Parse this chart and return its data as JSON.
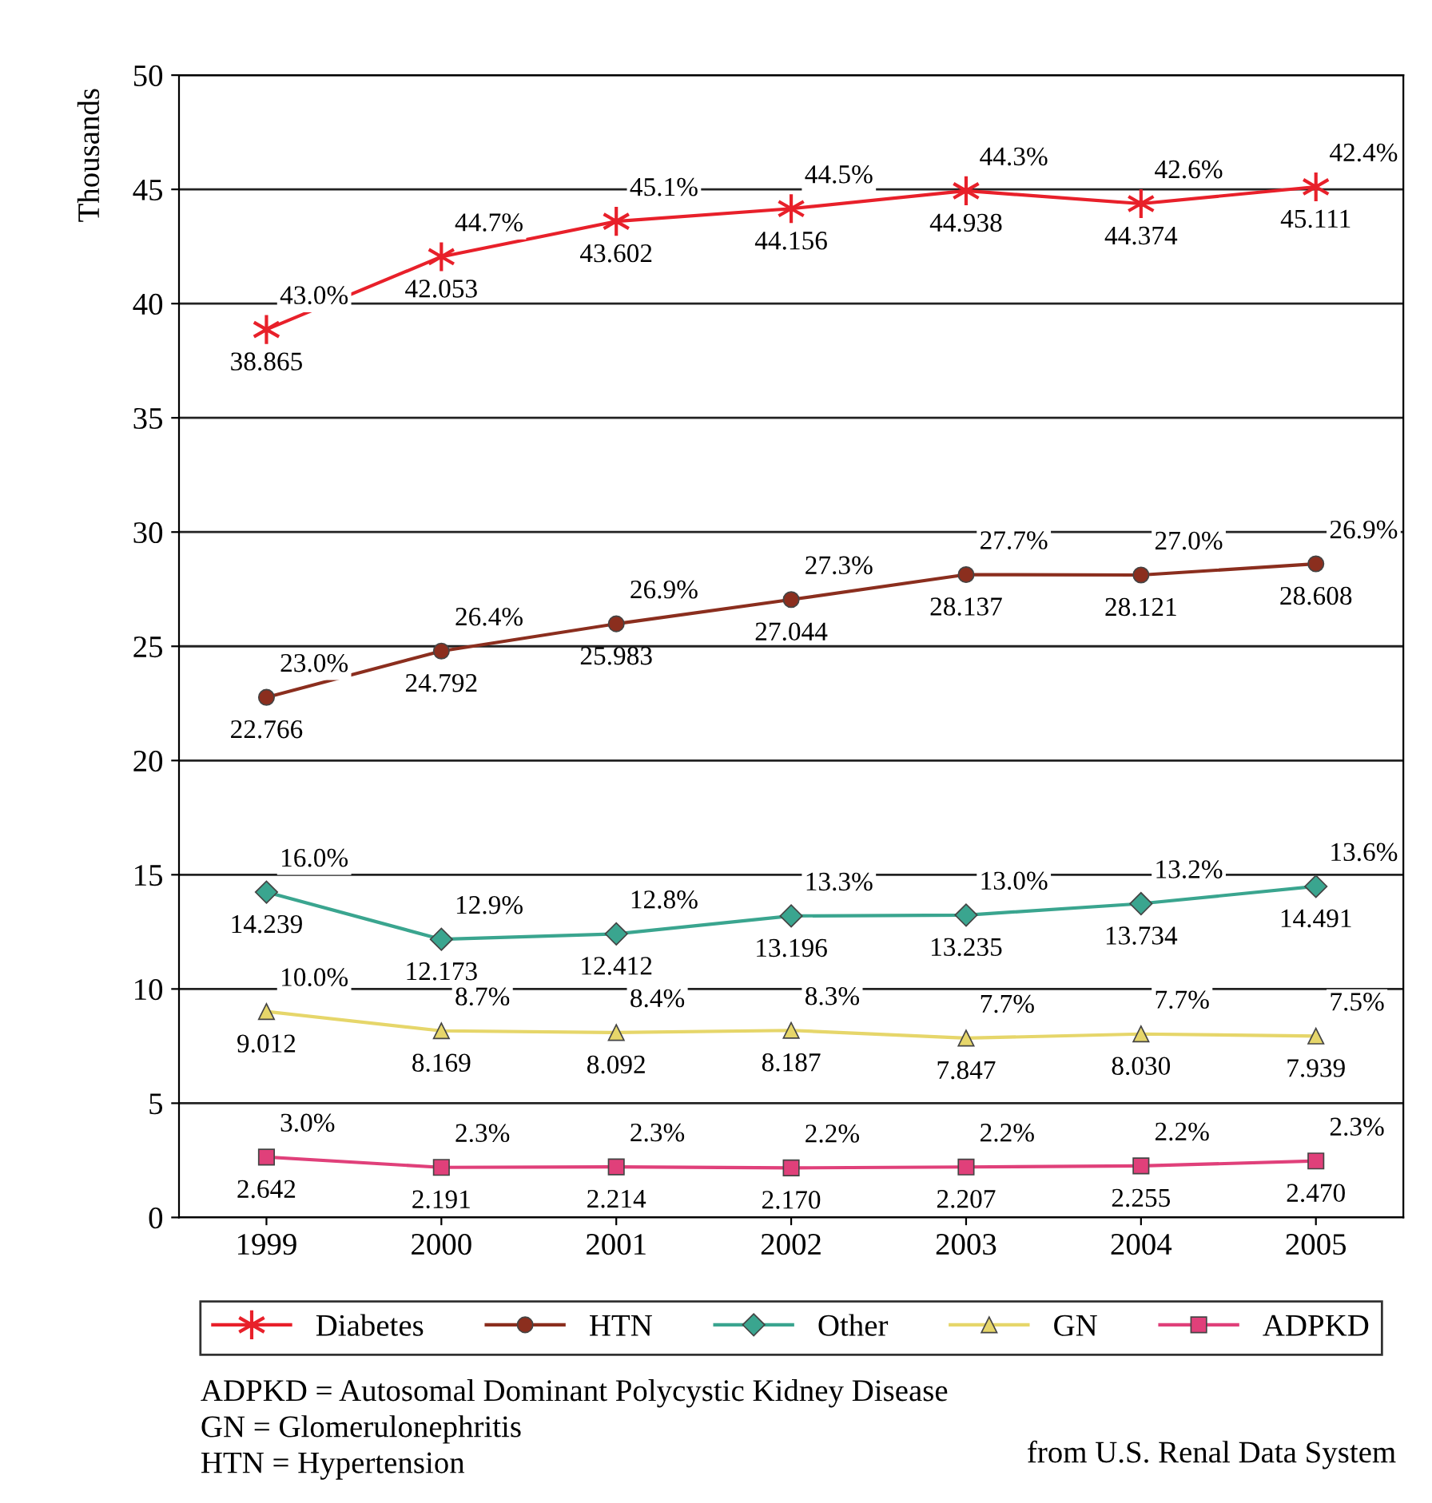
{
  "chart_data": {
    "type": "line",
    "ylabel": "Thousands",
    "categories": [
      "1999",
      "2000",
      "2001",
      "2002",
      "2003",
      "2004",
      "2005"
    ],
    "ylim": [
      0,
      50
    ],
    "yticks": [
      0,
      5,
      10,
      15,
      20,
      25,
      30,
      35,
      40,
      45,
      50
    ],
    "grid": "y",
    "legend": "bottom",
    "series": [
      {
        "name": "Diabetes",
        "color": "#e8202a",
        "marker": "cross",
        "values": [
          38.865,
          42.053,
          43.602,
          44.156,
          44.938,
          44.374,
          45.111
        ],
        "value_labels": [
          "38.865",
          "42.053",
          "43.602",
          "44.156",
          "44.938",
          "44.374",
          "45.111"
        ]
      },
      {
        "name": "HTN",
        "color": "#8b2e1e",
        "marker": "circle",
        "values": [
          22.766,
          24.792,
          25.983,
          27.044,
          28.137,
          28.121,
          28.608
        ],
        "value_labels": [
          "22.766",
          "24.792",
          "25.983",
          "27.044",
          "28.137",
          "28.121",
          "28.608"
        ]
      },
      {
        "name": "Other",
        "color": "#3aa58f",
        "marker": "diamond",
        "values": [
          14.239,
          12.173,
          12.412,
          13.196,
          13.235,
          13.734,
          14.491
        ],
        "value_labels": [
          "14.239",
          "12.173",
          "12.412",
          "13.196",
          "13.235",
          "13.734",
          "14.491"
        ]
      },
      {
        "name": "GN",
        "color": "#e6d66a",
        "marker": "triangle",
        "values": [
          9.012,
          8.169,
          8.092,
          8.187,
          7.847,
          8.03,
          7.939
        ],
        "value_labels": [
          "9.012",
          "8.169",
          "8.092",
          "8.187",
          "7.847",
          "8.030",
          "7.939"
        ]
      },
      {
        "name": "ADPKD",
        "color": "#e0407a",
        "marker": "square",
        "values": [
          2.642,
          2.191,
          2.214,
          2.17,
          2.207,
          2.255,
          2.47
        ],
        "value_labels": [
          "2.642",
          "2.191",
          "2.214",
          "2.170",
          "2.207",
          "2.255",
          "2.470"
        ]
      }
    ],
    "annotations": [
      {
        "text": "43.0%",
        "x": "1999",
        "y": 38.865
      },
      {
        "text": "44.7%",
        "x": "2000",
        "y": 42.053
      },
      {
        "text": "45.1%",
        "x": "2001",
        "y": 43.602
      },
      {
        "text": "44.5%",
        "x": "2002",
        "y": 44.156
      },
      {
        "text": "44.3%",
        "x": "2003",
        "y": 44.938
      },
      {
        "text": "42.6%",
        "x": "2004",
        "y": 44.374
      },
      {
        "text": "42.4%",
        "x": "2005",
        "y": 45.111
      },
      {
        "text": "23.0%",
        "x": "1999",
        "y": 22.766
      },
      {
        "text": "26.4%",
        "x": "2000",
        "y": 24.792
      },
      {
        "text": "26.9%",
        "x": "2001",
        "y": 25.983
      },
      {
        "text": "27.3%",
        "x": "2002",
        "y": 27.044
      },
      {
        "text": "27.7%",
        "x": "2003",
        "y": 28.137
      },
      {
        "text": "27.0%",
        "x": "2004",
        "y": 28.121
      },
      {
        "text": "26.9%",
        "x": "2005",
        "y": 28.608
      },
      {
        "text": "16.0%",
        "x": "1999",
        "y": 14.239
      },
      {
        "text": "12.9%",
        "x": "2000",
        "y": 12.173
      },
      {
        "text": "12.8%",
        "x": "2001",
        "y": 12.412
      },
      {
        "text": "13.3%",
        "x": "2002",
        "y": 13.196
      },
      {
        "text": "13.0%",
        "x": "2003",
        "y": 13.235
      },
      {
        "text": "13.2%",
        "x": "2004",
        "y": 13.734
      },
      {
        "text": "13.6%",
        "x": "2005",
        "y": 14.491
      },
      {
        "text": "10.0%",
        "x": "1999",
        "y": 9.012
      },
      {
        "text": "8.7%",
        "x": "2000",
        "y": 8.169
      },
      {
        "text": "8.4%",
        "x": "2001",
        "y": 8.092
      },
      {
        "text": "8.3%",
        "x": "2002",
        "y": 8.187
      },
      {
        "text": "7.7%",
        "x": "2003",
        "y": 7.847
      },
      {
        "text": "7.7%",
        "x": "2004",
        "y": 8.03
      },
      {
        "text": "7.5%",
        "x": "2005",
        "y": 7.939
      },
      {
        "text": "3.0%",
        "x": "1999",
        "y": 2.642
      },
      {
        "text": "2.3%",
        "x": "2000",
        "y": 2.191
      },
      {
        "text": "2.3%",
        "x": "2001",
        "y": 2.214
      },
      {
        "text": "2.2%",
        "x": "2002",
        "y": 2.17
      },
      {
        "text": "2.2%",
        "x": "2003",
        "y": 2.207
      },
      {
        "text": "2.2%",
        "x": "2004",
        "y": 2.255
      },
      {
        "text": "2.3%",
        "x": "2005",
        "y": 2.47
      },
      "ADPKD = Autosomal Dominant Polycystic Kidney Disease",
      "GN = Glomerulonephritis",
      "HTN = Hypertension",
      "from U.S. Renal Data System"
    ]
  }
}
